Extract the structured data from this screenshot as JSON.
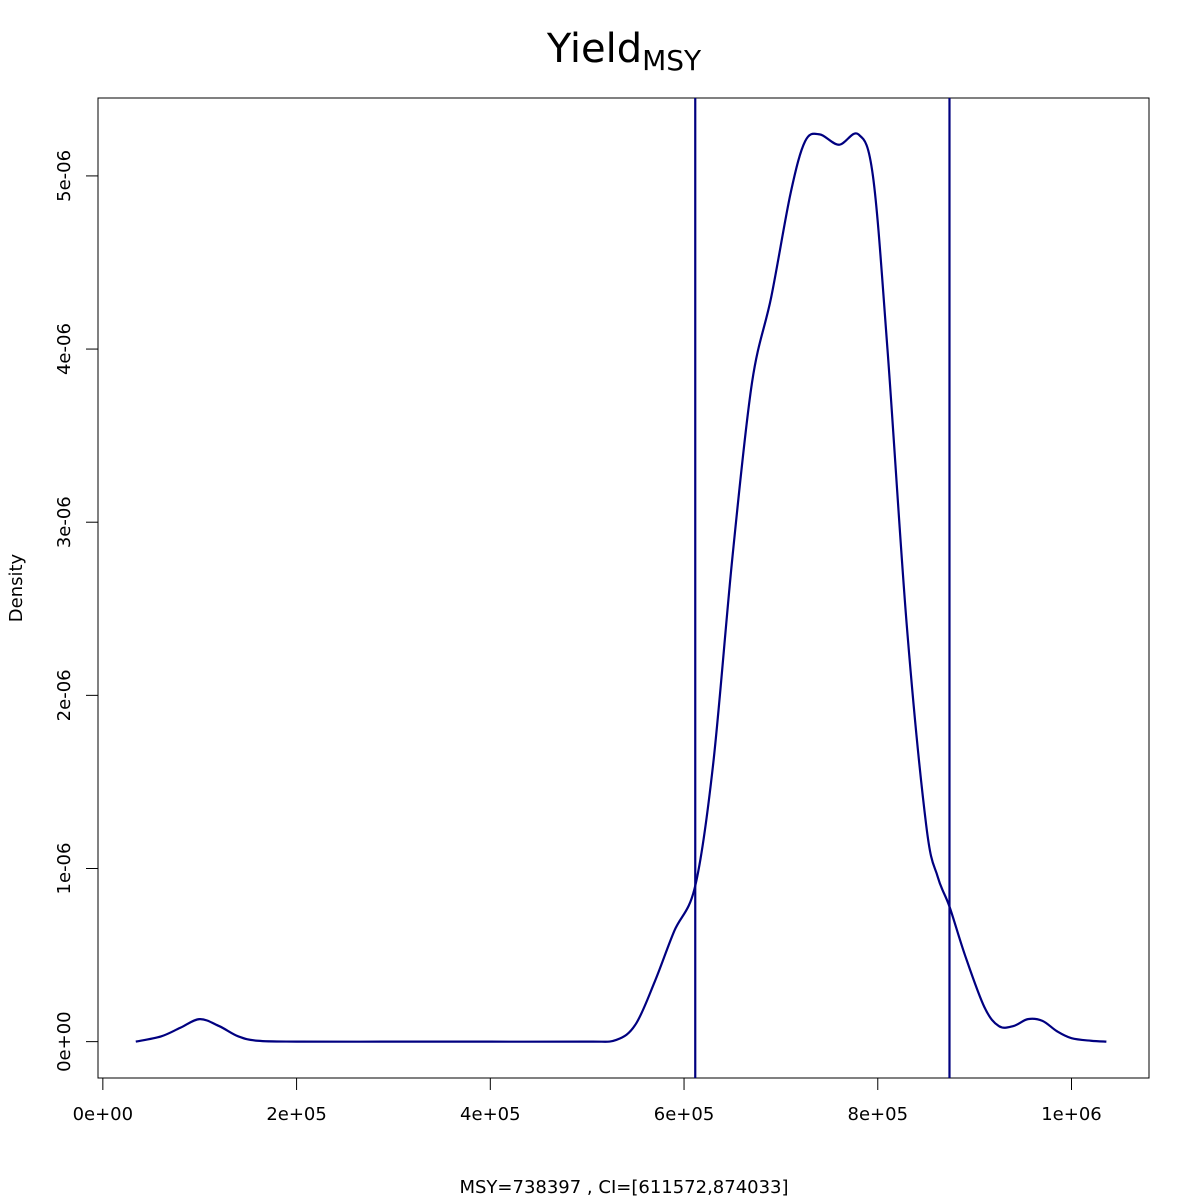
{
  "chart_data": {
    "type": "line",
    "title": "Yield",
    "title_subscript": "MSY",
    "xlabel": "MSY=738397 , CI=[611572,874033]",
    "ylabel": "Density",
    "xlim": [
      -5000,
      1080000
    ],
    "ylim": [
      -2.1e-07,
      5.45e-06
    ],
    "grid": false,
    "x_ticks": [
      {
        "value": 0,
        "label": "0e+00"
      },
      {
        "value": 200000,
        "label": "2e+05"
      },
      {
        "value": 400000,
        "label": "4e+05"
      },
      {
        "value": 600000,
        "label": "6e+05"
      },
      {
        "value": 800000,
        "label": "8e+05"
      },
      {
        "value": 1000000,
        "label": "1e+06"
      }
    ],
    "y_ticks": [
      {
        "value": 0,
        "label": "0e+00"
      },
      {
        "value": 1e-06,
        "label": "1e-06"
      },
      {
        "value": 2e-06,
        "label": "2e-06"
      },
      {
        "value": 3e-06,
        "label": "3e-06"
      },
      {
        "value": 4e-06,
        "label": "4e-06"
      },
      {
        "value": 5e-06,
        "label": "5e-06"
      }
    ],
    "series": [
      {
        "color": "#000080",
        "x": [
          34000,
          60000,
          80000,
          100000,
          120000,
          140000,
          160000,
          200000,
          300000,
          400000,
          500000,
          530000,
          550000,
          570000,
          590000,
          611572,
          630000,
          650000,
          670000,
          690000,
          710000,
          725000,
          740000,
          760000,
          780000,
          795000,
          810000,
          830000,
          850000,
          862000,
          874033,
          890000,
          910000,
          925000,
          940000,
          955000,
          970000,
          985000,
          1000000,
          1020000,
          1036000
        ],
        "y": [
          0,
          3e-08,
          8e-08,
          1.3e-07,
          9e-08,
          3e-08,
          5e-09,
          0,
          0,
          0,
          0,
          1e-08,
          1e-07,
          3.5e-07,
          6.4e-07,
          9e-07,
          1.6e-06,
          2.8e-06,
          3.8e-06,
          4.3e-06,
          4.9e-06,
          5.2e-06,
          5.24e-06,
          5.18e-06,
          5.24e-06,
          5e-06,
          4e-06,
          2.4e-06,
          1.25e-06,
          9.5e-07,
          7.8e-07,
          5e-07,
          2e-07,
          9e-08,
          9e-08,
          1.3e-07,
          1.2e-07,
          6e-08,
          2e-08,
          5e-09,
          0
        ]
      }
    ],
    "vlines": [
      {
        "x": 611572,
        "color": "#000080"
      },
      {
        "x": 874033,
        "color": "#000080"
      }
    ]
  }
}
